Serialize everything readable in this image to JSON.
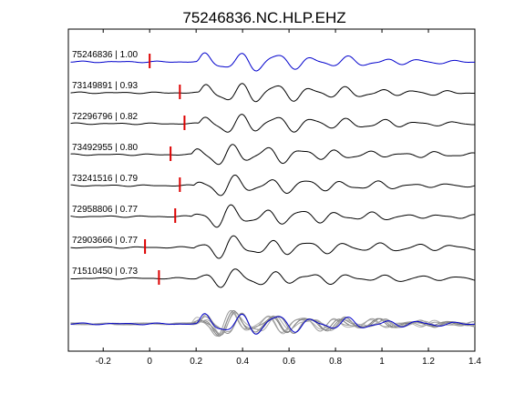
{
  "chart_data": {
    "type": "line",
    "title": "75246836.NC.HLP.EHZ",
    "xlabel": "",
    "ylabel": "",
    "xlim": [
      -0.35,
      1.4
    ],
    "xticks": [
      -0.2,
      0,
      0.2,
      0.4,
      0.6,
      0.8,
      1.0,
      1.2,
      1.4
    ],
    "xtick_labels": [
      "-0.2",
      "0",
      "0.2",
      "0.4",
      "0.6",
      "0.8",
      "1",
      "1.2",
      "1.4"
    ],
    "grid": false,
    "signal_start": -0.34,
    "signal_end": 1.4,
    "traces": [
      {
        "event": "75246836",
        "cc": "1.00",
        "pick": 0.0,
        "onset": 0.2,
        "amp": 0.95,
        "freq": 6.5,
        "phase": 0.0,
        "color": "#0000cc"
      },
      {
        "event": "73149891",
        "cc": "0.93",
        "pick": 0.13,
        "onset": 0.21,
        "amp": 1.0,
        "freq": 6.7,
        "phase": 0.4,
        "color": "#000000"
      },
      {
        "event": "72296796",
        "cc": "0.82",
        "pick": 0.15,
        "onset": 0.21,
        "amp": 0.95,
        "freq": 6.6,
        "phase": 0.9,
        "color": "#000000"
      },
      {
        "event": "73492955",
        "cc": "0.80",
        "pick": 0.09,
        "onset": 0.18,
        "amp": 0.95,
        "freq": 6.8,
        "phase": 1.4,
        "color": "#000000"
      },
      {
        "event": "73241516",
        "cc": "0.79",
        "pick": 0.13,
        "onset": 0.19,
        "amp": 0.9,
        "freq": 6.6,
        "phase": 1.9,
        "color": "#000000"
      },
      {
        "event": "72958806",
        "cc": "0.77",
        "pick": 0.11,
        "onset": 0.18,
        "amp": 0.95,
        "freq": 6.7,
        "phase": 2.4,
        "color": "#000000"
      },
      {
        "event": "72903666",
        "cc": "0.77",
        "pick": -0.02,
        "onset": 0.19,
        "amp": 1.0,
        "freq": 6.4,
        "phase": 2.9,
        "color": "#000000"
      },
      {
        "event": "71510450",
        "cc": "0.73",
        "pick": 0.04,
        "onset": 0.2,
        "amp": 0.9,
        "freq": 6.3,
        "phase": 3.4,
        "color": "#000000"
      }
    ],
    "stack": {
      "overlay_colors": [
        "#a0a0a0",
        "#8a8a8a",
        "#b0b0b0",
        "#7a7a7a",
        "#999999",
        "#888888",
        "#aaaaaa"
      ],
      "reference_color": "#0000cc"
    },
    "pick_color": "#dd0000"
  }
}
